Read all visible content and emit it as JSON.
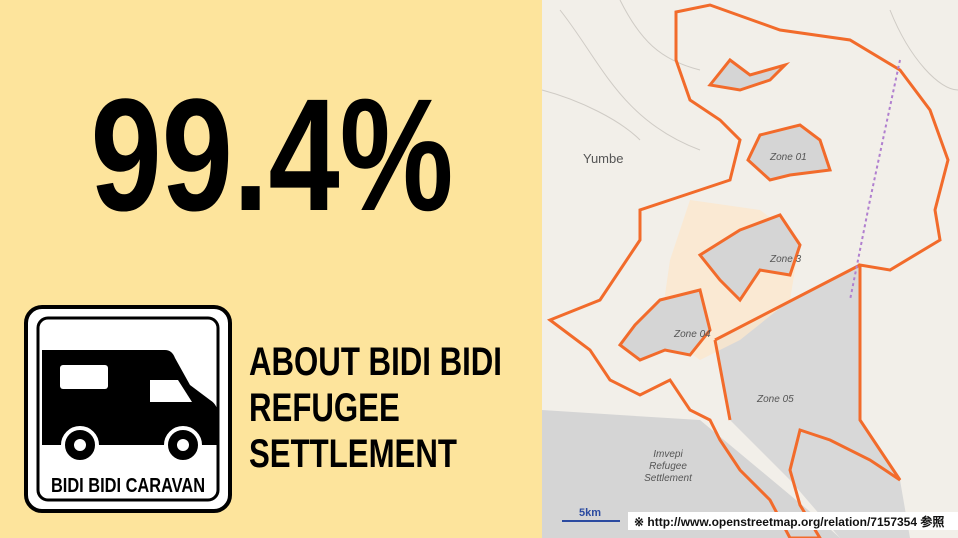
{
  "stat": {
    "value": "99.4%"
  },
  "logo": {
    "label": "BIDI BIDI CARAVAN"
  },
  "heading": {
    "lines": [
      "ABOUT BIDI BIDI",
      "REFUGEE",
      "SETTLEMENT"
    ]
  },
  "map": {
    "labels": {
      "town": "Yumbe",
      "zone1": "Zone 01",
      "zone3": "Zone 3",
      "zone4": "Zone 04",
      "zone5": "Zone 05",
      "imvepi": [
        "Imvepi",
        "Refugee",
        "Settlement"
      ]
    },
    "scale": "5km",
    "source": "※ http://www.openstreetmap.org/relation/7157354 参照"
  }
}
